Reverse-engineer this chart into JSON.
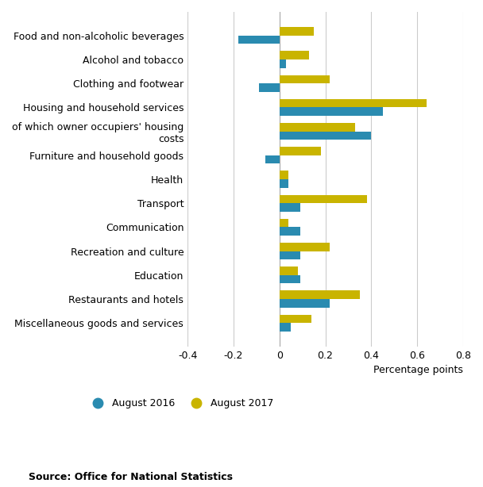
{
  "categories": [
    "Food and non-alcoholic beverages",
    "Alcohol and tobacco",
    "Clothing and footwear",
    "Housing and household services",
    "of which owner occupiers' housing\ncosts",
    "Furniture and household goods",
    "Health",
    "Transport",
    "Communication",
    "Recreation and culture",
    "Education",
    "Restaurants and hotels",
    "Miscellaneous goods and services"
  ],
  "aug2016": [
    -0.18,
    0.03,
    -0.09,
    0.45,
    0.4,
    -0.06,
    0.04,
    0.09,
    0.09,
    0.09,
    0.09,
    0.22,
    0.05
  ],
  "aug2017": [
    0.15,
    0.13,
    0.22,
    0.64,
    0.33,
    0.18,
    0.04,
    0.38,
    0.04,
    0.22,
    0.08,
    0.35,
    0.14
  ],
  "color_2016": "#2A8BB0",
  "color_2017": "#C9B400",
  "xlabel": "Percentage points",
  "xlim": [
    -0.4,
    0.8
  ],
  "xticks": [
    -0.4,
    -0.2,
    0.0,
    0.2,
    0.4,
    0.6,
    0.8
  ],
  "xtick_labels": [
    "-0.4",
    "-0.2",
    "0",
    "0.2",
    "0.4",
    "0.6",
    "0.8"
  ],
  "legend_labels": [
    "August 2016",
    "August 2017"
  ],
  "source": "Source: Office for National Statistics",
  "background_color": "#ffffff",
  "grid_color": "#cccccc"
}
